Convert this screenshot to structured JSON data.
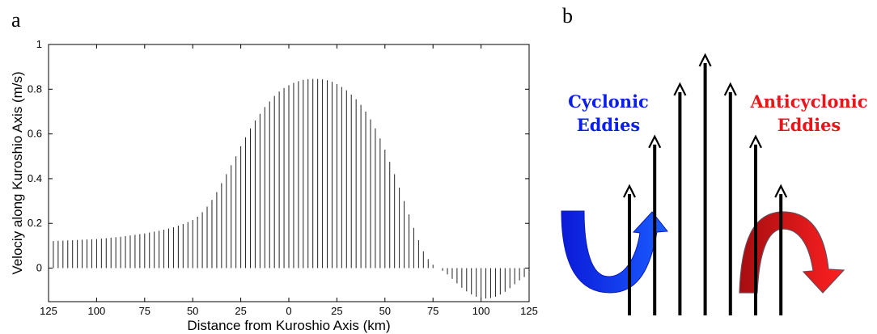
{
  "panel_a": {
    "label": "a",
    "chart_data": {
      "type": "bar",
      "title": "",
      "xlabel": "Distance from Kuroshio Axis (km)",
      "ylabel": "Velociy along Kuroshio Axis (m/s)",
      "xlim": [
        -125,
        125
      ],
      "ylim": [
        -0.15,
        1
      ],
      "x_tick_labels": [
        "125",
        "100",
        "75",
        "50",
        "25",
        "0",
        "25",
        "50",
        "75",
        "100",
        "125"
      ],
      "y_tick_labels": [
        "0",
        "0.2",
        "0.4",
        "0.6",
        "0.8",
        "1"
      ],
      "y_ticks": [
        0,
        0.2,
        0.4,
        0.6,
        0.8,
        1
      ],
      "grid": false,
      "x_step_km": 2.5,
      "values": [
        0.12,
        0.121,
        0.122,
        0.123,
        0.124,
        0.125,
        0.126,
        0.127,
        0.128,
        0.129,
        0.13,
        0.132,
        0.134,
        0.136,
        0.138,
        0.14,
        0.143,
        0.146,
        0.149,
        0.152,
        0.155,
        0.159,
        0.163,
        0.167,
        0.172,
        0.177,
        0.183,
        0.19,
        0.197,
        0.206,
        0.215,
        0.23,
        0.25,
        0.275,
        0.305,
        0.34,
        0.38,
        0.42,
        0.46,
        0.5,
        0.545,
        0.585,
        0.625,
        0.66,
        0.69,
        0.72,
        0.745,
        0.77,
        0.79,
        0.805,
        0.818,
        0.828,
        0.836,
        0.842,
        0.845,
        0.846,
        0.846,
        0.844,
        0.84,
        0.833,
        0.823,
        0.81,
        0.795,
        0.776,
        0.755,
        0.73,
        0.7,
        0.665,
        0.625,
        0.58,
        0.53,
        0.475,
        0.42,
        0.36,
        0.3,
        0.24,
        0.18,
        0.125,
        0.075,
        0.04,
        0.015,
        0.0,
        -0.012,
        -0.028,
        -0.048,
        -0.068,
        -0.088,
        -0.104,
        -0.118,
        -0.128,
        -0.134,
        -0.136,
        -0.134,
        -0.128,
        -0.118,
        -0.106,
        -0.09,
        -0.072,
        -0.055,
        -0.04,
        -0.03
      ]
    }
  },
  "panel_b": {
    "label": "b",
    "cyclonic_label": [
      "Cyclonic",
      "Eddies"
    ],
    "anticyclonic_label": [
      "Anticyclonic",
      "Eddies"
    ],
    "colors": {
      "cyclonic": "#0a1eee",
      "anticyclonic": "#e8151a",
      "arrow": "#000000"
    },
    "arrows": [
      {
        "name": "velocity-arrow-1",
        "height_level": 0.55
      },
      {
        "name": "velocity-arrow-2",
        "height_level": 0.72
      },
      {
        "name": "velocity-arrow-3",
        "height_level": 0.9
      },
      {
        "name": "velocity-arrow-4",
        "height_level": 1.0
      },
      {
        "name": "velocity-arrow-5",
        "height_level": 0.9
      },
      {
        "name": "velocity-arrow-6",
        "height_level": 0.72
      },
      {
        "name": "velocity-arrow-7",
        "height_level": 0.55
      }
    ]
  }
}
